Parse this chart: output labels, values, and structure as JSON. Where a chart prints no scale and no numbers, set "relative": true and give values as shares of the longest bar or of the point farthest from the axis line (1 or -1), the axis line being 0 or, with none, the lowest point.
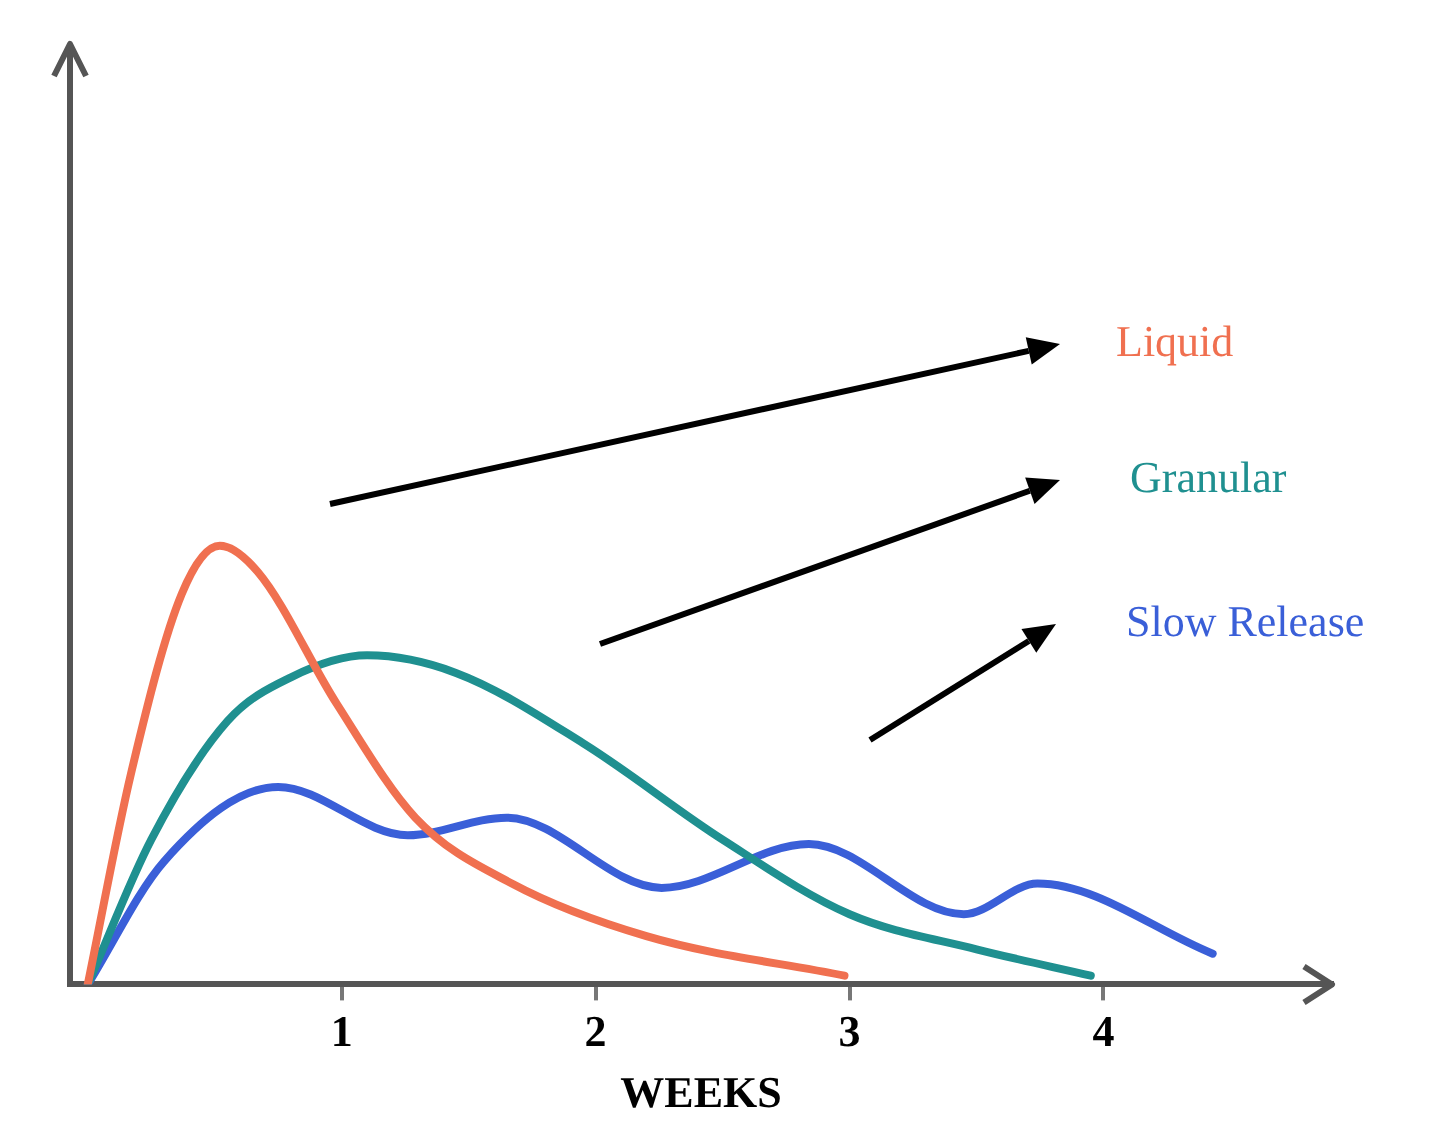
{
  "chart_data": {
    "type": "line",
    "relative": true,
    "xlabel": "WEEKS",
    "xlim": [
      -0.07,
      4.9
    ],
    "xticks": [
      1,
      2,
      3,
      4
    ],
    "grid": false,
    "legend": false,
    "marker": "none",
    "line_style": "solid",
    "series": [
      {
        "name": "Liquid",
        "color": "#f07050",
        "x": [
          0,
          0.17,
          0.37,
          0.52,
          0.67,
          0.98,
          1.29,
          1.67,
          2.2,
          2.98
        ],
        "values": [
          0,
          0.48,
          0.89,
          1,
          0.94,
          0.64,
          0.38,
          0.23,
          0.11,
          0.02
        ]
      },
      {
        "name": "Granular",
        "color": "#1f9090",
        "x": [
          0,
          0.25,
          0.55,
          0.8,
          1.1,
          1.45,
          1.95,
          2.5,
          3.0,
          3.5,
          3.95
        ],
        "values": [
          0,
          0.33,
          0.6,
          0.7,
          0.75,
          0.71,
          0.55,
          0.33,
          0.16,
          0.08,
          0.02
        ]
      },
      {
        "name": "Slow Release",
        "color": "#3a5fd8",
        "x": [
          0,
          0.3,
          0.75,
          1.26,
          1.65,
          2.26,
          2.84,
          3.45,
          3.74,
          4.43
        ],
        "values": [
          0,
          0.28,
          0.45,
          0.34,
          0.38,
          0.22,
          0.32,
          0.16,
          0.23,
          0.07
        ]
      }
    ]
  }
}
